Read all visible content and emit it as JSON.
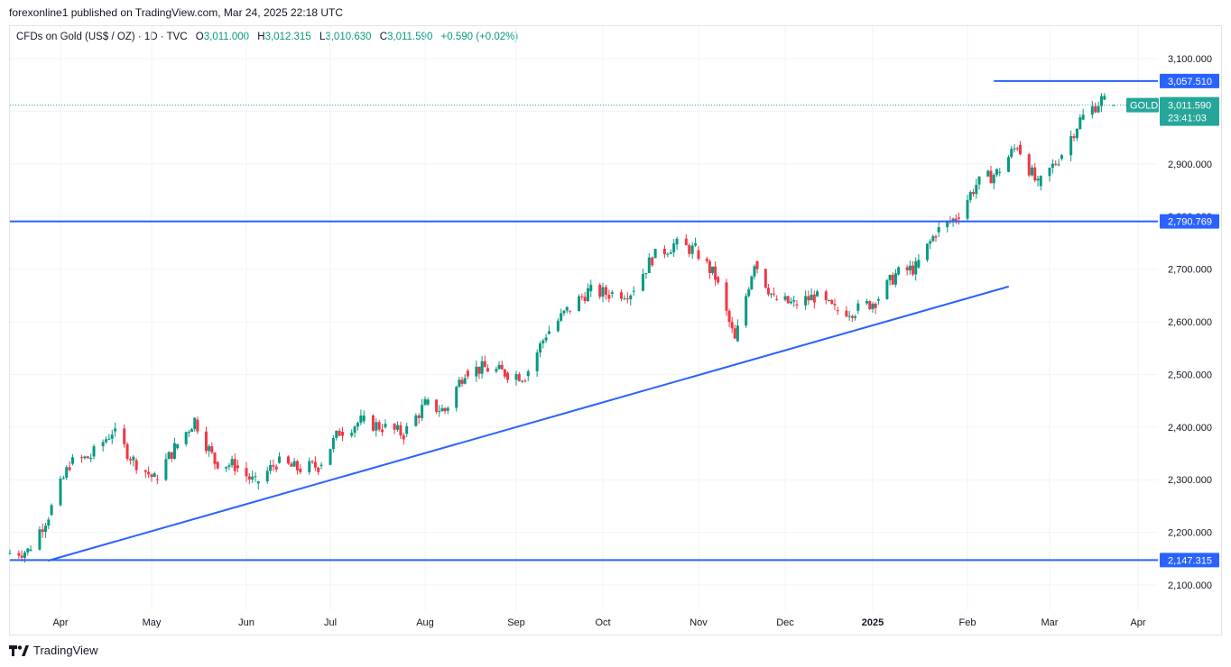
{
  "header": {
    "published_by": "forexonline1 published on TradingView.com, Mar 24, 2025 22:18 UTC"
  },
  "legend": {
    "symbol": "CFDs on Gold (US$ / OZ) · 1D · TVC",
    "open_label": "O",
    "open": "3,011.000",
    "high_label": "H",
    "high": "3,012.315",
    "low_label": "L",
    "low": "3,010.630",
    "close_label": "C",
    "close": "3,011.590",
    "change": "+0.590 (+0.02%)"
  },
  "footer": {
    "brand": "TradingView"
  },
  "colors": {
    "up": "#089981",
    "down": "#f23645",
    "line": "#2962ff",
    "grid": "#f0f3fa",
    "axis_text": "#131722",
    "price_tag": "#26a69a"
  },
  "chart_data": {
    "type": "candlestick",
    "symbol": "GOLD",
    "timeframe": "1D",
    "ylim": [
      2060,
      3130
    ],
    "y_ticks": [
      "2,100.000",
      "2,200.000",
      "2,300.000",
      "2,400.000",
      "2,500.000",
      "2,600.000",
      "2,700.000",
      "2,800.000",
      "2,900.000",
      "3,000.000",
      "3,100.000"
    ],
    "y_tick_values": [
      2100,
      2200,
      2300,
      2400,
      2500,
      2600,
      2700,
      2800,
      2900,
      3000,
      3100
    ],
    "x_ticks": [
      {
        "label": "Apr",
        "date": "2024-04-01"
      },
      {
        "label": "May",
        "date": "2024-05-01"
      },
      {
        "label": "Jun",
        "date": "2024-06-03"
      },
      {
        "label": "Jul",
        "date": "2024-07-01"
      },
      {
        "label": "Aug",
        "date": "2024-08-01"
      },
      {
        "label": "Sep",
        "date": "2024-09-02"
      },
      {
        "label": "Oct",
        "date": "2024-10-01"
      },
      {
        "label": "Nov",
        "date": "2024-11-01"
      },
      {
        "label": "Dec",
        "date": "2024-12-02"
      },
      {
        "label": "2025",
        "date": "2025-01-01",
        "bold": true
      },
      {
        "label": "Feb",
        "date": "2025-02-03"
      },
      {
        "label": "Mar",
        "date": "2025-03-03"
      },
      {
        "label": "Apr",
        "date": "2025-04-01"
      }
    ],
    "x_range": [
      "2024-03-15",
      "2025-04-12"
    ],
    "series": [
      {
        "name": "GOLD",
        "closes": [
          {
            "date": "2024-03-15",
            "close": 2160
          },
          {
            "date": "2024-03-22",
            "close": 2165
          },
          {
            "date": "2024-03-29",
            "close": 2233
          },
          {
            "date": "2024-04-05",
            "close": 2330
          },
          {
            "date": "2024-04-12",
            "close": 2344
          },
          {
            "date": "2024-04-19",
            "close": 2392
          },
          {
            "date": "2024-04-26",
            "close": 2337
          },
          {
            "date": "2024-05-03",
            "close": 2301
          },
          {
            "date": "2024-05-10",
            "close": 2360
          },
          {
            "date": "2024-05-17",
            "close": 2414
          },
          {
            "date": "2024-05-24",
            "close": 2334
          },
          {
            "date": "2024-05-31",
            "close": 2327
          },
          {
            "date": "2024-06-07",
            "close": 2293
          },
          {
            "date": "2024-06-14",
            "close": 2332
          },
          {
            "date": "2024-06-21",
            "close": 2321
          },
          {
            "date": "2024-06-28",
            "close": 2326
          },
          {
            "date": "2024-07-05",
            "close": 2391
          },
          {
            "date": "2024-07-12",
            "close": 2411
          },
          {
            "date": "2024-07-19",
            "close": 2400
          },
          {
            "date": "2024-07-26",
            "close": 2387
          },
          {
            "date": "2024-08-02",
            "close": 2443
          },
          {
            "date": "2024-08-09",
            "close": 2431
          },
          {
            "date": "2024-08-16",
            "close": 2507
          },
          {
            "date": "2024-08-23",
            "close": 2512
          },
          {
            "date": "2024-08-30",
            "close": 2503
          },
          {
            "date": "2024-09-06",
            "close": 2497
          },
          {
            "date": "2024-09-13",
            "close": 2577
          },
          {
            "date": "2024-09-20",
            "close": 2621
          },
          {
            "date": "2024-09-27",
            "close": 2658
          },
          {
            "date": "2024-10-04",
            "close": 2653
          },
          {
            "date": "2024-10-11",
            "close": 2657
          },
          {
            "date": "2024-10-18",
            "close": 2721
          },
          {
            "date": "2024-10-25",
            "close": 2747
          },
          {
            "date": "2024-11-01",
            "close": 2736
          },
          {
            "date": "2024-11-08",
            "close": 2685
          },
          {
            "date": "2024-11-15",
            "close": 2563
          },
          {
            "date": "2024-11-22",
            "close": 2715
          },
          {
            "date": "2024-11-29",
            "close": 2643
          },
          {
            "date": "2024-12-06",
            "close": 2633
          },
          {
            "date": "2024-12-13",
            "close": 2648
          },
          {
            "date": "2024-12-20",
            "close": 2622
          },
          {
            "date": "2024-12-27",
            "close": 2621
          },
          {
            "date": "2025-01-03",
            "close": 2640
          },
          {
            "date": "2025-01-10",
            "close": 2690
          },
          {
            "date": "2025-01-17",
            "close": 2703
          },
          {
            "date": "2025-01-24",
            "close": 2770
          },
          {
            "date": "2025-01-31",
            "close": 2798
          },
          {
            "date": "2025-02-07",
            "close": 2861
          },
          {
            "date": "2025-02-14",
            "close": 2883
          },
          {
            "date": "2025-02-21",
            "close": 2936
          },
          {
            "date": "2025-02-28",
            "close": 2858
          },
          {
            "date": "2025-03-07",
            "close": 2910
          },
          {
            "date": "2025-03-14",
            "close": 2984
          },
          {
            "date": "2025-03-21",
            "close": 3022
          },
          {
            "date": "2025-03-24",
            "close": 3011.59
          }
        ]
      }
    ],
    "horizontal_levels": [
      {
        "value": 3057.51,
        "label": "3,057.510",
        "start": "2025-02-12"
      },
      {
        "value": 2790.769,
        "label": "2,790.769",
        "start": "2024-03-15"
      },
      {
        "value": 2147.315,
        "label": "2,147.315",
        "start": "2024-03-15"
      }
    ],
    "trendlines": [
      {
        "from": {
          "date": "2024-03-22",
          "value": 2146
        },
        "to": {
          "date": "2025-02-14",
          "value": 2667
        }
      }
    ],
    "last_price": {
      "label": "3,011.590",
      "value": 3011.59,
      "symbol": "GOLD",
      "countdown": "23:41:03"
    }
  }
}
